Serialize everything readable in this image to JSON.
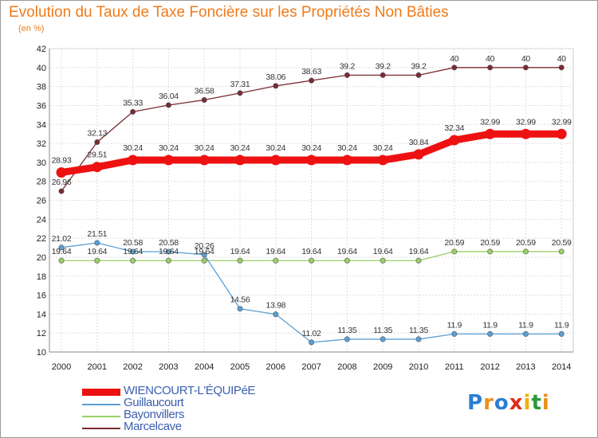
{
  "title": "Evolution du Taux de Taxe Foncière sur les Propriétés Non Bâties",
  "unit": "(en %)",
  "logo": {
    "text": "Proxiti",
    "letters": [
      "P",
      "r",
      "o",
      "x",
      "i",
      "t",
      "i"
    ],
    "colors": [
      "#2a7fd4",
      "#e8921c",
      "#2a7fd4",
      "#e02a1a",
      "#f0b000",
      "#2a9a3a",
      "#e8921c"
    ]
  },
  "chart_data": {
    "type": "line",
    "x": [
      2000,
      2001,
      2002,
      2003,
      2004,
      2005,
      2006,
      2007,
      2008,
      2009,
      2010,
      2011,
      2012,
      2013,
      2014
    ],
    "ylim": [
      10,
      42
    ],
    "yticks": [
      10,
      12,
      14,
      16,
      18,
      20,
      22,
      24,
      26,
      28,
      30,
      32,
      34,
      36,
      38,
      40,
      42
    ],
    "grid": true,
    "legend_position": "bottom-left",
    "series": [
      {
        "name": "WIENCOURT-L'ÉQUIPéE",
        "color": "#ee1111",
        "values": [
          28.93,
          29.51,
          30.24,
          30.24,
          30.24,
          30.24,
          30.24,
          30.24,
          30.24,
          30.24,
          30.84,
          32.34,
          32.99,
          32.99,
          32.99
        ],
        "labels": [
          "28.93",
          "29.51",
          "30.24",
          "30.24",
          "30.24",
          "30.24",
          "30.24",
          "30.24",
          "30.24",
          "30.24",
          "30.84",
          "32.34",
          "32.99",
          "32.99",
          "32.99"
        ]
      },
      {
        "name": "Guillaucourt",
        "color": "#5a9fd4",
        "values": [
          21.02,
          21.51,
          20.58,
          20.58,
          20.26,
          14.56,
          13.98,
          11.02,
          11.35,
          11.35,
          11.35,
          11.9,
          11.9,
          11.9,
          11.9
        ],
        "labels": [
          "21.02",
          "21.51",
          "20.58",
          "20.58",
          "20.26",
          "14.56",
          "13.98",
          "11.02",
          "11.35",
          "11.35",
          "11.35",
          "11.9",
          "11.9",
          "11.9",
          "11.9"
        ]
      },
      {
        "name": "Bayonvillers",
        "color": "#99d066",
        "values": [
          19.64,
          19.64,
          19.64,
          19.64,
          19.64,
          19.64,
          19.64,
          19.64,
          19.64,
          19.64,
          19.64,
          20.59,
          20.59,
          20.59,
          20.59
        ],
        "labels": [
          "19.64",
          "19.64",
          "19.64",
          "19.64",
          "19.64",
          "19.64",
          "19.64",
          "19.64",
          "19.64",
          "19.64",
          "19.64",
          "20.59",
          "20.59",
          "20.59",
          "20.59"
        ]
      },
      {
        "name": "Marcelcave",
        "color": "#7a2a33",
        "values": [
          26.96,
          32.13,
          35.33,
          36.04,
          36.58,
          37.31,
          38.06,
          38.63,
          39.2,
          39.2,
          39.2,
          40,
          40,
          40,
          40
        ],
        "labels": [
          "26.96",
          "32.13",
          "35.33",
          "36.04",
          "36.58",
          "37.31",
          "38.06",
          "38.63",
          "39.2",
          "39.2",
          "39.2",
          "40",
          "40",
          "40",
          "40"
        ]
      }
    ]
  }
}
